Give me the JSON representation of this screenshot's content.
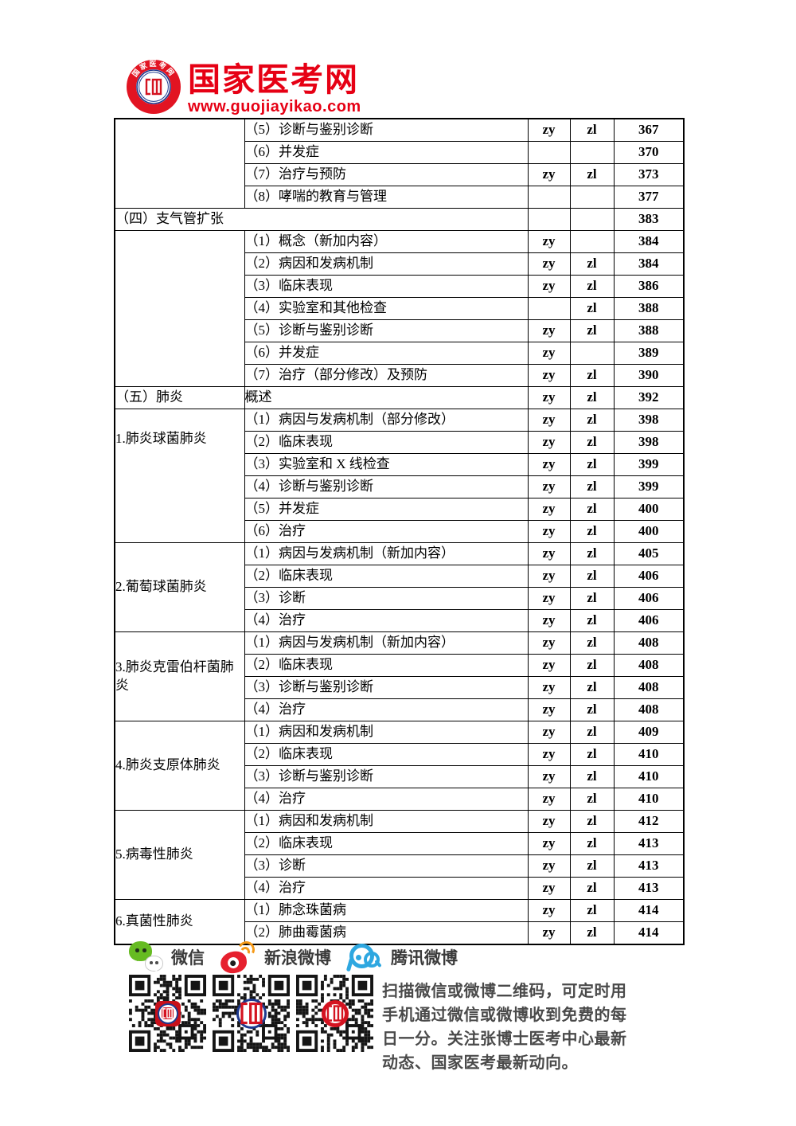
{
  "logo": {
    "title": "国家医考网",
    "url": "www.guojiayikao.com",
    "ring_text": "国家医考网"
  },
  "table": {
    "rows": [
      {
        "section": "",
        "section_rowspan": 4,
        "topic": "（5）诊断与鉴别诊断",
        "zy": "zy",
        "zl": "zl",
        "page": "367"
      },
      {
        "topic": "（6）并发症",
        "zy": "",
        "zl": "",
        "page": "370"
      },
      {
        "topic": "（7）治疗与预防",
        "zy": "zy",
        "zl": "zl",
        "page": "373"
      },
      {
        "topic": "（8）哮喘的教育与管理",
        "zy": "",
        "zl": "",
        "page": "377"
      },
      {
        "section": "（四）支气管扩张",
        "section_colspan": 2,
        "zy": "",
        "zl": "",
        "page": "383"
      },
      {
        "section": "",
        "section_rowspan": 7,
        "topic": "（1）概念（新加内容）",
        "zy": "zy",
        "zl": "",
        "page": "384"
      },
      {
        "topic": "（2）病因和发病机制",
        "zy": "zy",
        "zl": "zl",
        "page": "384"
      },
      {
        "topic": "（3）临床表现",
        "zy": "zy",
        "zl": "zl",
        "page": "386"
      },
      {
        "topic": "（4）实验室和其他检查",
        "zy": "",
        "zl": "zl",
        "page": "388"
      },
      {
        "topic": "（5）诊断与鉴别诊断",
        "zy": "zy",
        "zl": "zl",
        "page": "388"
      },
      {
        "topic": "（6）并发症",
        "zy": "zy",
        "zl": "",
        "page": "389"
      },
      {
        "topic": "（7）治疗（部分修改）及预防",
        "zy": "zy",
        "zl": "zl",
        "page": "390"
      },
      {
        "section": "（五）肺炎",
        "section_rowspan": 1,
        "topic": "概述",
        "zy": "zy",
        "zl": "zl",
        "page": "392"
      },
      {
        "section": "1.肺炎球菌肺炎",
        "section_rowspan": 6,
        "topic": "（1）病因与发病机制（部分修改）",
        "zy": "zy",
        "zl": "zl",
        "page": "398"
      },
      {
        "topic": "（2）临床表现",
        "zy": "zy",
        "zl": "zl",
        "page": "398"
      },
      {
        "topic": "（3）实验室和 X 线检查",
        "zy": "zy",
        "zl": "zl",
        "page": "399"
      },
      {
        "topic": "（4）诊断与鉴别诊断",
        "zy": "zy",
        "zl": "zl",
        "page": "399"
      },
      {
        "topic": "（5）并发症",
        "zy": "zy",
        "zl": "zl",
        "page": "400"
      },
      {
        "topic": "（6）治疗",
        "zy": "zy",
        "zl": "zl",
        "page": "400"
      },
      {
        "section": "2.葡萄球菌肺炎",
        "section_rowspan": 4,
        "topic": "（1）病因与发病机制（新加内容）",
        "zy": "zy",
        "zl": "zl",
        "page": "405"
      },
      {
        "topic": "（2）临床表现",
        "zy": "zy",
        "zl": "zl",
        "page": "406"
      },
      {
        "topic": "（3）诊断",
        "zy": "zy",
        "zl": "zl",
        "page": "406"
      },
      {
        "topic": "（4）治疗",
        "zy": "zy",
        "zl": "zl",
        "page": "406"
      },
      {
        "section": "3.肺炎克雷伯杆菌肺炎",
        "section_rowspan": 4,
        "topic": "（1）病因与发病机制（新加内容）",
        "zy": "zy",
        "zl": "zl",
        "page": "408"
      },
      {
        "topic": "（2）临床表现",
        "zy": "zy",
        "zl": "zl",
        "page": "408"
      },
      {
        "topic": "（3）诊断与鉴别诊断",
        "zy": "zy",
        "zl": "zl",
        "page": "408"
      },
      {
        "topic": "（4）治疗",
        "zy": "zy",
        "zl": "zl",
        "page": "408"
      },
      {
        "section": "4.肺炎支原体肺炎",
        "section_rowspan": 4,
        "topic": "（1）病因和发病机制",
        "zy": "zy",
        "zl": "zl",
        "page": "409"
      },
      {
        "topic": "（2）临床表现",
        "zy": "zy",
        "zl": "zl",
        "page": "410"
      },
      {
        "topic": "（3）诊断与鉴别诊断",
        "zy": "zy",
        "zl": "zl",
        "page": "410"
      },
      {
        "topic": "（4）治疗",
        "zy": "zy",
        "zl": "zl",
        "page": "410"
      },
      {
        "section": "5.病毒性肺炎",
        "section_rowspan": 4,
        "topic": "（1）病因和发病机制",
        "zy": "zy",
        "zl": "zl",
        "page": "412"
      },
      {
        "topic": "（2）临床表现",
        "zy": "zy",
        "zl": "zl",
        "page": "413"
      },
      {
        "topic": "（3）诊断",
        "zy": "zy",
        "zl": "zl",
        "page": "413"
      },
      {
        "topic": "（4）治疗",
        "zy": "zy",
        "zl": "zl",
        "page": "413"
      },
      {
        "section": "6.真菌性肺炎",
        "section_rowspan": 2,
        "topic": "（1）肺念珠菌病",
        "zy": "zy",
        "zl": "zl",
        "page": "414"
      },
      {
        "topic": "（2）肺曲霉菌病",
        "zy": "zy",
        "zl": "zl",
        "page": "414"
      }
    ]
  },
  "footer": {
    "social": [
      {
        "name": "wechat",
        "label": "微信"
      },
      {
        "name": "sina-weibo",
        "label": "新浪微博"
      },
      {
        "name": "tencent-weibo",
        "label": "腾讯微博"
      }
    ],
    "caption_lines": [
      "扫描微信或微博二维码，可定时用",
      "手机通过微信或微博收到免费的每",
      "日一分。关注张博士医考中心最新",
      "动态、国家医考最新动向。"
    ]
  }
}
